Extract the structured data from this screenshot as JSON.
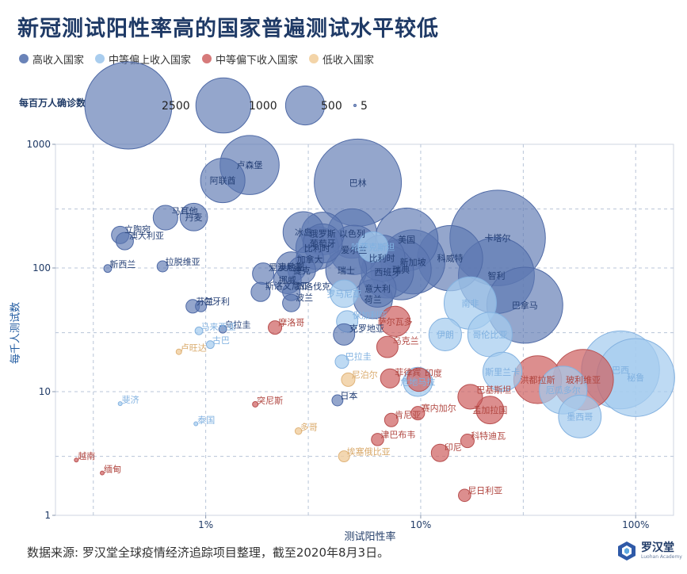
{
  "title": "新冠测试阳性率高的国家普遍测试水平较低",
  "legend": [
    {
      "label": "高收入国家",
      "color": "#6a83b8"
    },
    {
      "label": "中等偏上收入国家",
      "color": "#a9cdee"
    },
    {
      "label": "中等偏下收入国家",
      "color": "#d67a7a"
    },
    {
      "label": "低收入国家",
      "color": "#f3d4a8"
    }
  ],
  "size_legend": {
    "title": "每百万人确诊数",
    "items": [
      {
        "value": 2500,
        "label": "2500"
      },
      {
        "value": 1000,
        "label": "1000"
      },
      {
        "value": 500,
        "label": "500"
      },
      {
        "value": 5,
        "label": "5"
      }
    ]
  },
  "source": "数据来源: 罗汉堂全球疫情经济追踪项目整理，截至2020年8月3日。",
  "logo": {
    "name": "罗汉堂",
    "sub": "Luohan Academy"
  },
  "chart_data": {
    "type": "scatter",
    "title": "新冠测试阳性率高的国家普遍测试水平较低",
    "xlabel": "测试阳性率",
    "ylabel": "每千人测试数",
    "x_scale": "log",
    "y_scale": "log",
    "xlim": [
      0.2,
      150
    ],
    "ylim": [
      1,
      1000
    ],
    "x_ticks": [
      {
        "value": 1,
        "label": "1%"
      },
      {
        "value": 10,
        "label": "10%"
      },
      {
        "value": 100,
        "label": "100%"
      }
    ],
    "y_ticks": [
      {
        "value": 1,
        "label": "1"
      },
      {
        "value": 10,
        "label": "10"
      },
      {
        "value": 100,
        "label": "100"
      },
      {
        "value": 1000,
        "label": "1000"
      }
    ],
    "grid": true,
    "groups": [
      "高收入国家",
      "中等偏上收入国家",
      "中等偏下收入国家",
      "低收入国家"
    ],
    "points": [
      {
        "name": "卢森堡",
        "x": 1.6,
        "y": 680,
        "size": 1150,
        "g": 0
      },
      {
        "name": "阿联酋",
        "x": 1.2,
        "y": 510,
        "size": 650,
        "g": 0
      },
      {
        "name": "巴林",
        "x": 5.1,
        "y": 490,
        "size": 2500,
        "g": 0
      },
      {
        "name": "马耳他",
        "x": 0.65,
        "y": 255,
        "size": 200,
        "g": 0
      },
      {
        "name": "丹麦",
        "x": 0.88,
        "y": 258,
        "size": 250,
        "g": 0
      },
      {
        "name": "立陶宛",
        "x": 0.4,
        "y": 185,
        "size": 100,
        "g": 0
      },
      {
        "name": "澳大利亚",
        "x": 0.42,
        "y": 165,
        "size": 100,
        "g": 0
      },
      {
        "name": "冰岛",
        "x": 2.85,
        "y": 195,
        "size": 550,
        "g": 0
      },
      {
        "name": "俄罗斯",
        "x": 3.5,
        "y": 190,
        "size": 600,
        "g": 0
      },
      {
        "name": "以色列",
        "x": 4.8,
        "y": 190,
        "size": 800,
        "g": 0
      },
      {
        "name": "美国",
        "x": 8.6,
        "y": 170,
        "size": 1300,
        "g": 0
      },
      {
        "name": "卡塔尔",
        "x": 22.8,
        "y": 175,
        "size": 3000,
        "g": 0
      },
      {
        "name": "葡萄牙",
        "x": 3.5,
        "y": 158,
        "size": 500,
        "g": 0
      },
      {
        "name": "比利时",
        "x": 3.3,
        "y": 145,
        "size": 600,
        "g": 0
      },
      {
        "name": "爱尔兰",
        "x": 4.9,
        "y": 140,
        "size": 800,
        "g": 0
      },
      {
        "name": "哈萨克斯坦",
        "x": 6.0,
        "y": 148,
        "size": 300,
        "g": 1
      },
      {
        "name": "科威特",
        "x": 13.7,
        "y": 120,
        "size": 1400,
        "g": 0
      },
      {
        "name": "新西兰",
        "x": 0.35,
        "y": 99,
        "size": 20,
        "g": 0
      },
      {
        "name": "拉脱维亚",
        "x": 0.63,
        "y": 103,
        "size": 40,
        "g": 0
      },
      {
        "name": "加拿大",
        "x": 3.05,
        "y": 118,
        "size": 250,
        "g": 0
      },
      {
        "name": "比利时",
        "x": 6.6,
        "y": 120,
        "size": 700,
        "g": 0
      },
      {
        "name": "新加坡",
        "x": 9.2,
        "y": 112,
        "size": 1350,
        "g": 0
      },
      {
        "name": "爱沙尼亚",
        "x": 1.85,
        "y": 90,
        "size": 150,
        "g": 0
      },
      {
        "name": "奥地利",
        "x": 2.5,
        "y": 102,
        "size": 300,
        "g": 0
      },
      {
        "name": "捷克",
        "x": 2.8,
        "y": 96,
        "size": 250,
        "g": 0
      },
      {
        "name": "瑞士",
        "x": 4.5,
        "y": 96,
        "size": 550,
        "g": 0
      },
      {
        "name": "西班牙",
        "x": 7.0,
        "y": 93,
        "size": 900,
        "g": 0
      },
      {
        "name": "瑞典",
        "x": 8.1,
        "y": 97,
        "size": 1200,
        "g": 0
      },
      {
        "name": "智利",
        "x": 22.5,
        "y": 87,
        "size": 1900,
        "g": 0
      },
      {
        "name": "挪威",
        "x": 2.4,
        "y": 80,
        "size": 250,
        "g": 0
      },
      {
        "name": "斯洛文尼亚",
        "x": 1.8,
        "y": 64,
        "size": 120,
        "g": 0
      },
      {
        "name": "斯洛伐克",
        "x": 2.5,
        "y": 64,
        "size": 100,
        "g": 0
      },
      {
        "name": "罗马尼亚",
        "x": 4.4,
        "y": 62,
        "size": 250,
        "g": 1
      },
      {
        "name": "意大利",
        "x": 6.3,
        "y": 68,
        "size": 450,
        "g": 0
      },
      {
        "name": "荷兰",
        "x": 6.0,
        "y": 56,
        "size": 500,
        "g": 0
      },
      {
        "name": "波兰",
        "x": 2.5,
        "y": 52,
        "size": 100,
        "g": 0
      },
      {
        "name": "南非",
        "x": 17.0,
        "y": 52,
        "size": 900,
        "g": 1
      },
      {
        "name": "巴拿马",
        "x": 30.5,
        "y": 50,
        "size": 1900,
        "g": 0
      },
      {
        "name": "芬兰",
        "x": 0.87,
        "y": 49,
        "size": 60,
        "g": 0
      },
      {
        "name": "匈牙利",
        "x": 0.95,
        "y": 49,
        "size": 40,
        "g": 0
      },
      {
        "name": "保加利亚",
        "x": 4.55,
        "y": 37,
        "size": 150,
        "g": 1
      },
      {
        "name": "萨尔瓦多",
        "x": 7.6,
        "y": 37,
        "size": 300,
        "g": 2
      },
      {
        "name": "乌拉圭",
        "x": 1.2,
        "y": 32,
        "size": 20,
        "g": 0
      },
      {
        "name": "马来西亚",
        "x": 0.93,
        "y": 31,
        "size": 20,
        "g": 1
      },
      {
        "name": "克罗地亚",
        "x": 4.4,
        "y": 29,
        "size": 150,
        "g": 0
      },
      {
        "name": "伊朗",
        "x": 13.0,
        "y": 29,
        "size": 350,
        "g": 1
      },
      {
        "name": "哥伦比亚",
        "x": 21.0,
        "y": 29,
        "size": 650,
        "g": 1
      },
      {
        "name": "摩洛哥",
        "x": 2.1,
        "y": 33,
        "size": 60,
        "g": 2
      },
      {
        "name": "古巴",
        "x": 1.05,
        "y": 24,
        "size": 20,
        "g": 1
      },
      {
        "name": "卢旺达",
        "x": 0.75,
        "y": 21,
        "size": 10,
        "g": 3
      },
      {
        "name": "乌克兰",
        "x": 7.0,
        "y": 23,
        "size": 150,
        "g": 2
      },
      {
        "name": "巴拉圭",
        "x": 4.3,
        "y": 17.5,
        "size": 60,
        "g": 1
      },
      {
        "name": "尼泊尔",
        "x": 4.6,
        "y": 12.5,
        "size": 60,
        "g": 3
      },
      {
        "name": "菲律宾",
        "x": 7.2,
        "y": 12.8,
        "size": 120,
        "g": 2
      },
      {
        "name": "印度",
        "x": 9.8,
        "y": 12.5,
        "size": 180,
        "g": 2
      },
      {
        "name": "危地马拉",
        "x": 9.7,
        "y": 12.0,
        "size": 280,
        "g": 1
      },
      {
        "name": "斯里兰卡",
        "x": 24.0,
        "y": 14.5,
        "size": 500,
        "g": 1
      },
      {
        "name": "巴西",
        "x": 85.0,
        "y": 15.0,
        "size": 2000,
        "g": 1
      },
      {
        "name": "秘鲁",
        "x": 100.0,
        "y": 13.0,
        "size": 2000,
        "g": 1
      },
      {
        "name": "洪都拉斯",
        "x": 35.0,
        "y": 12.5,
        "size": 750,
        "g": 2
      },
      {
        "name": "玻利维亚",
        "x": 57.0,
        "y": 12.5,
        "size": 1200,
        "g": 2
      },
      {
        "name": "厄瓜多尔",
        "x": 46.0,
        "y": 10.3,
        "size": 750,
        "g": 1
      },
      {
        "name": "日本",
        "x": 4.1,
        "y": 8.5,
        "size": 40,
        "g": 0
      },
      {
        "name": "斐济",
        "x": 0.4,
        "y": 8.0,
        "size": 5,
        "g": 1
      },
      {
        "name": "突尼斯",
        "x": 1.7,
        "y": 7.9,
        "size": 10,
        "g": 2
      },
      {
        "name": "巴基斯坦",
        "x": 17.0,
        "y": 9.1,
        "size": 200,
        "g": 2
      },
      {
        "name": "孟加拉国",
        "x": 21.0,
        "y": 7.1,
        "size": 250,
        "g": 2
      },
      {
        "name": "墨西哥",
        "x": 55.0,
        "y": 6.3,
        "size": 600,
        "g": 1
      },
      {
        "name": "赛内加尔",
        "x": 9.7,
        "y": 6.7,
        "size": 60,
        "g": 2
      },
      {
        "name": "肯尼亚",
        "x": 7.3,
        "y": 5.9,
        "size": 60,
        "g": 2
      },
      {
        "name": "泰国",
        "x": 0.9,
        "y": 5.5,
        "size": 5,
        "g": 1
      },
      {
        "name": "多哥",
        "x": 2.7,
        "y": 4.8,
        "size": 15,
        "g": 3
      },
      {
        "name": "津巴布韦",
        "x": 6.3,
        "y": 4.1,
        "size": 50,
        "g": 2
      },
      {
        "name": "科特迪瓦",
        "x": 16.5,
        "y": 4.0,
        "size": 60,
        "g": 2
      },
      {
        "name": "印尼",
        "x": 12.3,
        "y": 3.2,
        "size": 100,
        "g": 2
      },
      {
        "name": "埃塞俄比亚",
        "x": 4.4,
        "y": 3.0,
        "size": 40,
        "g": 3
      },
      {
        "name": "越南",
        "x": 0.25,
        "y": 2.8,
        "size": 5,
        "g": 2
      },
      {
        "name": "缅甸",
        "x": 0.33,
        "y": 2.2,
        "size": 5,
        "g": 2
      },
      {
        "name": "尼日利亚",
        "x": 16.0,
        "y": 1.45,
        "size": 50,
        "g": 2
      }
    ]
  }
}
